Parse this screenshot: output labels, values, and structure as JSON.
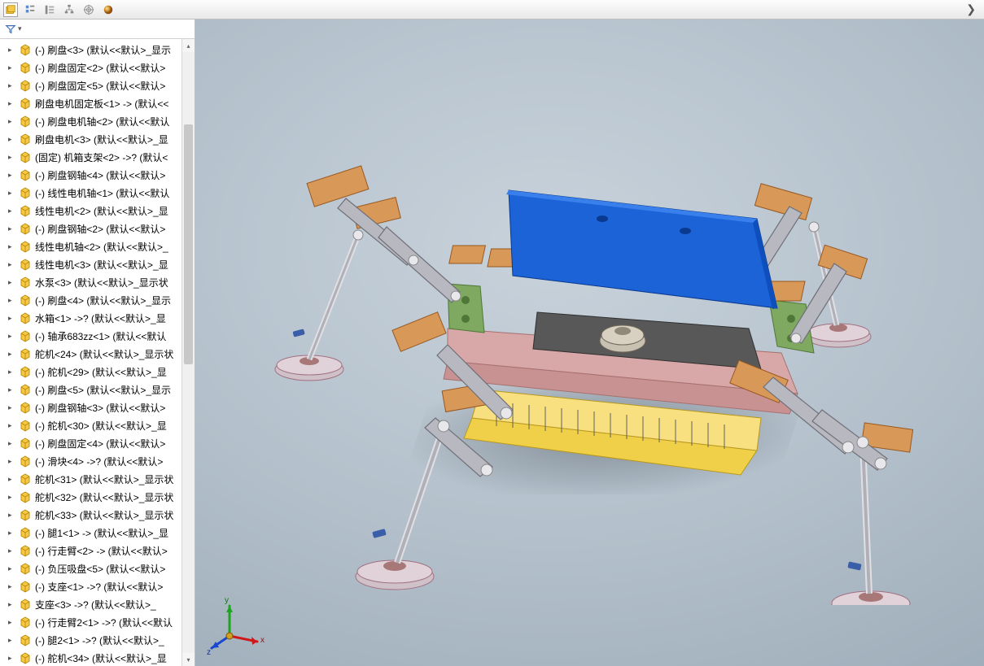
{
  "tabs": {
    "icons": [
      "assembly-cube",
      "list-view",
      "outline-view",
      "hierarchy-view",
      "target-view",
      "appearance-view"
    ],
    "active_index": 0
  },
  "colors": {
    "part_icon_fill": "#f5c84a",
    "part_icon_stroke": "#b88900",
    "viewport_bg_center": "#c8d2db",
    "viewport_bg_edge": "#8896a4",
    "triad_x": "#d01818",
    "triad_y": "#1fa41f",
    "triad_z": "#1848d0",
    "model_top_plate": "#1c63d8",
    "model_top_plate_dark": "#0f4fbd",
    "model_pink_base": "#d8a8a8",
    "model_yellow": "#f0d048",
    "model_green": "#7fa860",
    "model_orange": "#d89858",
    "model_gray": "#a8a8b0",
    "model_silver": "#d0d0d8",
    "model_dark": "#505050",
    "suction_cup": "#d0c0c8",
    "suction_ring": "#a87878"
  },
  "tree_items": [
    "(-) 刷盘<3> (默认<<默认>_显示",
    "(-) 刷盘固定<2> (默认<<默认>",
    "(-) 刷盘固定<5> (默认<<默认>",
    "刷盘电机固定板<1> -> (默认<<",
    "(-) 刷盘电机轴<2> (默认<<默认",
    "刷盘电机<3> (默认<<默认>_显",
    "(固定) 机箱支架<2> ->? (默认<",
    "(-) 刷盘钢轴<4> (默认<<默认>",
    "(-) 线性电机轴<1> (默认<<默认",
    "线性电机<2> (默认<<默认>_显",
    "(-) 刷盘钢轴<2> (默认<<默认>",
    "线性电机轴<2> (默认<<默认>_",
    "线性电机<3> (默认<<默认>_显",
    "水泵<3> (默认<<默认>_显示状",
    "(-) 刷盘<4> (默认<<默认>_显示",
    "水箱<1> ->? (默认<<默认>_显",
    "(-) 轴承683zz<1> (默认<<默认",
    "舵机<24> (默认<<默认>_显示状",
    "(-) 舵机<29> (默认<<默认>_显",
    "(-) 刷盘<5> (默认<<默认>_显示",
    "(-) 刷盘钢轴<3> (默认<<默认>",
    "(-) 舵机<30> (默认<<默认>_显",
    "(-) 刷盘固定<4> (默认<<默认>",
    "(-) 滑块<4> ->? (默认<<默认>",
    "舵机<31> (默认<<默认>_显示状",
    "舵机<32> (默认<<默认>_显示状",
    "舵机<33> (默认<<默认>_显示状",
    "(-) 腿1<1> -> (默认<<默认>_显",
    "(-) 行走臂<2> -> (默认<<默认>",
    "(-) 负压吸盘<5> (默认<<默认>",
    "(-) 支座<1> ->? (默认<<默认>",
    "支座<3> ->? (默认<<默认>_",
    "(-) 行走臂2<1> ->? (默认<<默认",
    "(-) 腿2<1> ->? (默认<<默认>_",
    "(-) 舵机<34> (默认<<默认>_显"
  ],
  "triad": {
    "x_label": "x",
    "y_label": "y",
    "z_label": "z"
  }
}
